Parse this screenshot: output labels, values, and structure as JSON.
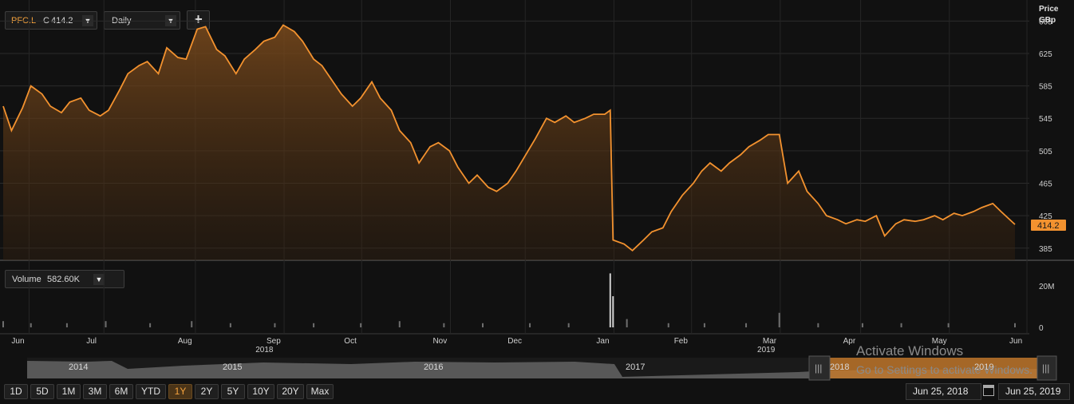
{
  "toolbar": {
    "symbol": "PFC.L",
    "close_label": "C",
    "close_value": "414.2",
    "interval": "Daily",
    "add_label": "+"
  },
  "price_axis": {
    "title_line1": "Price",
    "title_line2": "GBp",
    "last_value": "414.2"
  },
  "volume_panel": {
    "label": "Volume",
    "value": "582.60K"
  },
  "navigator": {
    "years": [
      "2014",
      "2015",
      "2016",
      "2017",
      "2018",
      "2019"
    ]
  },
  "range_buttons": [
    "1D",
    "5D",
    "1M",
    "3M",
    "6M",
    "YTD",
    "1Y",
    "2Y",
    "5Y",
    "10Y",
    "20Y",
    "Max"
  ],
  "active_range": "1Y",
  "dates": {
    "from": "Jun 25, 2018",
    "to": "Jun 25, 2019"
  },
  "watermark": {
    "line1": "Activate Windows",
    "line2": "Go to Settings to activate Windows."
  },
  "colors": {
    "line": "#f3922f",
    "background": "#111111",
    "volume": "#6e6e6e"
  },
  "chart_data": [
    {
      "type": "area",
      "title": "",
      "ylabel": "Price GBp",
      "ylim": [
        370,
        685
      ],
      "yticks": [
        385,
        425,
        465,
        505,
        545,
        585,
        625,
        665
      ],
      "x_month_labels": [
        "Jun",
        "Jul",
        "Aug",
        "Sep",
        "Oct",
        "Nov",
        "Dec",
        "Jan",
        "Feb",
        "Mar",
        "Apr",
        "May",
        "Jun"
      ],
      "x_year_labels": [
        "2018",
        "2019"
      ],
      "xlim": [
        "2018-06-25",
        "2019-06-25"
      ],
      "grid": true,
      "series": [
        {
          "values": [
            [
              "2018-06-25",
              560
            ],
            [
              "2018-06-28",
              530
            ],
            [
              "2018-07-02",
              558
            ],
            [
              "2018-07-05",
              585
            ],
            [
              "2018-07-09",
              575
            ],
            [
              "2018-07-12",
              560
            ],
            [
              "2018-07-16",
              552
            ],
            [
              "2018-07-19",
              565
            ],
            [
              "2018-07-23",
              570
            ],
            [
              "2018-07-26",
              555
            ],
            [
              "2018-07-30",
              548
            ],
            [
              "2018-08-02",
              555
            ],
            [
              "2018-08-06",
              580
            ],
            [
              "2018-08-09",
              600
            ],
            [
              "2018-08-13",
              610
            ],
            [
              "2018-08-16",
              615
            ],
            [
              "2018-08-20",
              600
            ],
            [
              "2018-08-23",
              632
            ],
            [
              "2018-08-27",
              620
            ],
            [
              "2018-08-30",
              618
            ],
            [
              "2018-09-03",
              655
            ],
            [
              "2018-09-06",
              658
            ],
            [
              "2018-09-10",
              630
            ],
            [
              "2018-09-13",
              622
            ],
            [
              "2018-09-17",
              600
            ],
            [
              "2018-09-20",
              618
            ],
            [
              "2018-09-24",
              630
            ],
            [
              "2018-09-27",
              640
            ],
            [
              "2018-10-01",
              645
            ],
            [
              "2018-10-04",
              660
            ],
            [
              "2018-10-08",
              652
            ],
            [
              "2018-10-11",
              640
            ],
            [
              "2018-10-15",
              618
            ],
            [
              "2018-10-18",
              610
            ],
            [
              "2018-10-22",
              590
            ],
            [
              "2018-10-25",
              575
            ],
            [
              "2018-10-29",
              560
            ],
            [
              "2018-11-01",
              570
            ],
            [
              "2018-11-05",
              590
            ],
            [
              "2018-11-08",
              570
            ],
            [
              "2018-11-12",
              555
            ],
            [
              "2018-11-15",
              530
            ],
            [
              "2018-11-19",
              515
            ],
            [
              "2018-11-22",
              490
            ],
            [
              "2018-11-26",
              510
            ],
            [
              "2018-11-29",
              515
            ],
            [
              "2018-12-03",
              505
            ],
            [
              "2018-12-06",
              485
            ],
            [
              "2018-12-10",
              465
            ],
            [
              "2018-12-13",
              475
            ],
            [
              "2018-12-17",
              460
            ],
            [
              "2018-12-20",
              455
            ],
            [
              "2018-12-24",
              465
            ],
            [
              "2018-12-27",
              480
            ],
            [
              "2019-01-03",
              520
            ],
            [
              "2019-01-07",
              545
            ],
            [
              "2019-01-10",
              540
            ],
            [
              "2019-01-14",
              548
            ],
            [
              "2019-01-17",
              540
            ],
            [
              "2019-01-21",
              545
            ],
            [
              "2019-01-24",
              550
            ],
            [
              "2019-01-28",
              550
            ],
            [
              "2019-01-30",
              555
            ],
            [
              "2019-01-31",
              395
            ],
            [
              "2019-02-04",
              390
            ],
            [
              "2019-02-07",
              382
            ],
            [
              "2019-02-11",
              395
            ],
            [
              "2019-02-14",
              405
            ],
            [
              "2019-02-18",
              410
            ],
            [
              "2019-02-21",
              430
            ],
            [
              "2019-02-25",
              450
            ],
            [
              "2019-03-01",
              465
            ],
            [
              "2019-03-04",
              480
            ],
            [
              "2019-03-07",
              490
            ],
            [
              "2019-03-11",
              480
            ],
            [
              "2019-03-14",
              490
            ],
            [
              "2019-03-18",
              500
            ],
            [
              "2019-03-21",
              510
            ],
            [
              "2019-03-25",
              518
            ],
            [
              "2019-03-28",
              525
            ],
            [
              "2019-04-01",
              525
            ],
            [
              "2019-04-04",
              465
            ],
            [
              "2019-04-08",
              480
            ],
            [
              "2019-04-11",
              455
            ],
            [
              "2019-04-15",
              440
            ],
            [
              "2019-04-18",
              425
            ],
            [
              "2019-04-22",
              420
            ],
            [
              "2019-04-25",
              415
            ],
            [
              "2019-04-29",
              420
            ],
            [
              "2019-05-02",
              418
            ],
            [
              "2019-05-06",
              425
            ],
            [
              "2019-05-09",
              400
            ],
            [
              "2019-05-13",
              415
            ],
            [
              "2019-05-16",
              420
            ],
            [
              "2019-05-20",
              418
            ],
            [
              "2019-05-23",
              420
            ],
            [
              "2019-05-27",
              425
            ],
            [
              "2019-05-30",
              420
            ],
            [
              "2019-06-03",
              428
            ],
            [
              "2019-06-06",
              425
            ],
            [
              "2019-06-10",
              430
            ],
            [
              "2019-06-13",
              435
            ],
            [
              "2019-06-17",
              440
            ],
            [
              "2019-06-20",
              430
            ],
            [
              "2019-06-25",
              414.2
            ]
          ]
        }
      ]
    },
    {
      "type": "bar",
      "title": "",
      "ylabel": "Volume",
      "ylim": [
        0,
        35
      ],
      "yticks": [
        {
          "value": 20,
          "label": "20M"
        },
        {
          "value": 0,
          "label": "0"
        }
      ],
      "series": [
        {
          "values": [
            [
              "2018-06-25",
              3
            ],
            [
              "2018-07-05",
              2
            ],
            [
              "2018-07-18",
              2
            ],
            [
              "2018-08-01",
              3
            ],
            [
              "2018-08-17",
              2
            ],
            [
              "2018-09-01",
              3
            ],
            [
              "2018-09-15",
              2
            ],
            [
              "2018-10-01",
              2
            ],
            [
              "2018-10-15",
              2
            ],
            [
              "2018-11-01",
              2
            ],
            [
              "2018-11-15",
              3
            ],
            [
              "2018-12-01",
              2
            ],
            [
              "2018-12-15",
              2
            ],
            [
              "2019-01-01",
              2
            ],
            [
              "2019-01-15",
              2
            ],
            [
              "2019-01-30",
              26
            ],
            [
              "2019-01-31",
              15
            ],
            [
              "2019-02-05",
              4
            ],
            [
              "2019-02-20",
              2
            ],
            [
              "2019-03-05",
              2
            ],
            [
              "2019-03-20",
              2
            ],
            [
              "2019-04-01",
              7
            ],
            [
              "2019-04-15",
              2
            ],
            [
              "2019-05-01",
              2
            ],
            [
              "2019-05-15",
              2
            ],
            [
              "2019-06-01",
              2
            ],
            [
              "2019-06-25",
              2
            ]
          ]
        }
      ]
    }
  ]
}
